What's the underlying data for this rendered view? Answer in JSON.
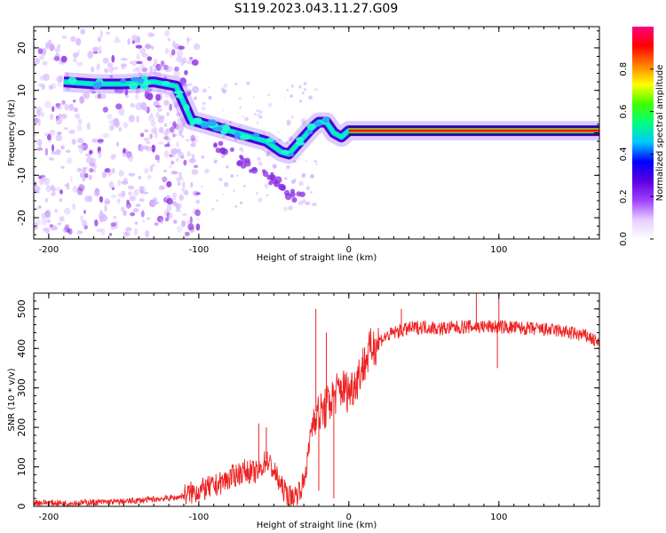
{
  "figure_title": "S119.2023.043.11.27.G09",
  "chart_data": [
    {
      "type": "heatmap",
      "title": "",
      "xlabel": "Height of straight line (km)",
      "ylabel": "Frequency (Hz)",
      "xlim": [
        -210,
        167
      ],
      "ylim": [
        -25,
        25
      ],
      "xticks": [
        -200,
        -100,
        0,
        100
      ],
      "yticks": [
        -20,
        -10,
        0,
        10,
        20
      ],
      "colorbar": {
        "label": "Normalized spectral amplitude",
        "range": [
          0,
          1
        ],
        "ticks": [
          "0.0",
          "0.2",
          "0.4",
          "0.6",
          "0.8"
        ],
        "colors": [
          "#ffffff",
          "#e6ccff",
          "#a040ff",
          "#5a00e0",
          "#0000ff",
          "#00c8ff",
          "#00ff80",
          "#40ff00",
          "#ffff00",
          "#ff8000",
          "#ff0000",
          "#ff0080"
        ]
      },
      "ridge": {
        "x": [
          -190,
          -170,
          -150,
          -130,
          -115,
          -105,
          -95,
          -85,
          -75,
          -65,
          -55,
          -45,
          -40,
          -35,
          -30,
          -25,
          -20,
          -15,
          -10,
          -5,
          0,
          20,
          50,
          100,
          167
        ],
        "y": [
          12,
          11.5,
          11.5,
          12,
          11,
          3,
          2,
          1,
          0,
          -1,
          -2,
          -4.5,
          -5,
          -3,
          -1,
          1,
          2.5,
          2.5,
          0,
          -1,
          0.5,
          0.5,
          0.5,
          0.5,
          0.5
        ]
      }
    },
    {
      "type": "line",
      "title": "",
      "xlabel": "Height of straight line (km)",
      "ylabel": "SNR (10 * v/v)",
      "xlim": [
        -210,
        167
      ],
      "ylim": [
        0,
        540
      ],
      "xticks": [
        -200,
        -100,
        0,
        100
      ],
      "yticks": [
        0,
        100,
        200,
        300,
        400,
        500
      ],
      "series": [
        {
          "color": "#ee2222",
          "x": [
            -210,
            -190,
            -170,
            -150,
            -130,
            -115,
            -100,
            -90,
            -80,
            -70,
            -60,
            -55,
            -50,
            -45,
            -40,
            -35,
            -30,
            -27,
            -25,
            -22,
            -20,
            -15,
            -10,
            -5,
            0,
            5,
            10,
            15,
            20,
            30,
            40,
            50,
            60,
            80,
            100,
            120,
            140,
            160,
            167
          ],
          "y": [
            10,
            8,
            10,
            12,
            18,
            22,
            40,
            50,
            70,
            90,
            85,
            120,
            90,
            50,
            25,
            30,
            60,
            130,
            200,
            240,
            230,
            250,
            280,
            300,
            290,
            320,
            360,
            400,
            420,
            440,
            450,
            455,
            450,
            455,
            455,
            450,
            445,
            430,
            410
          ]
        }
      ],
      "spikes": [
        {
          "x": -60,
          "y": 210
        },
        {
          "x": -55,
          "y": 200
        },
        {
          "x": -22,
          "y": 500
        },
        {
          "x": -15,
          "y": 440
        },
        {
          "x": -20,
          "y": 40
        },
        {
          "x": -10,
          "y": 20
        },
        {
          "x": 35,
          "y": 500
        },
        {
          "x": 85,
          "y": 540
        },
        {
          "x": 100,
          "y": 540
        },
        {
          "x": 99,
          "y": 350
        }
      ]
    }
  ]
}
